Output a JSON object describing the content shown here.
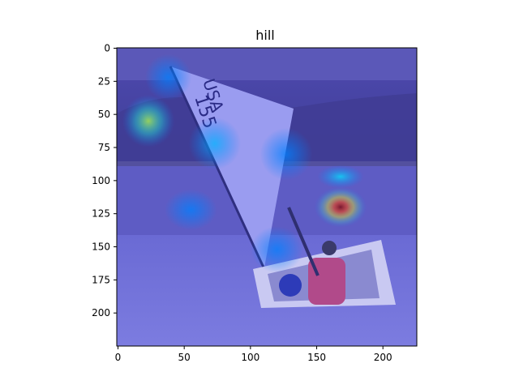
{
  "chart_data": {
    "type": "heatmap",
    "title": "hill",
    "xlabel": "",
    "ylabel": "",
    "xlim": [
      0,
      224
    ],
    "ylim": [
      224,
      0
    ],
    "x_ticks": [
      0,
      50,
      100,
      150,
      200
    ],
    "y_ticks": [
      0,
      25,
      50,
      75,
      100,
      125,
      150,
      175,
      200
    ],
    "grid": false,
    "colormap": "jet",
    "overlay_background": "photo of a small sailboat with a white sail marked USA 155 on a sandy beach",
    "hotspots": [
      {
        "x": 168,
        "y": 120,
        "sx": 9,
        "sy": 7,
        "value": 1.0
      },
      {
        "x": 168,
        "y": 97,
        "sx": 8,
        "sy": 4,
        "value": 0.35
      },
      {
        "x": 23,
        "y": 55,
        "sx": 9,
        "sy": 9,
        "value": 0.55
      },
      {
        "x": 73,
        "y": 72,
        "sx": 9,
        "sy": 9,
        "value": 0.3
      },
      {
        "x": 38,
        "y": 22,
        "sx": 8,
        "sy": 8,
        "value": 0.25
      },
      {
        "x": 55,
        "y": 122,
        "sx": 9,
        "sy": 7,
        "value": 0.22
      },
      {
        "x": 120,
        "y": 152,
        "sx": 9,
        "sy": 8,
        "value": 0.22
      },
      {
        "x": 127,
        "y": 80,
        "sx": 9,
        "sy": 9,
        "value": 0.18
      }
    ]
  }
}
